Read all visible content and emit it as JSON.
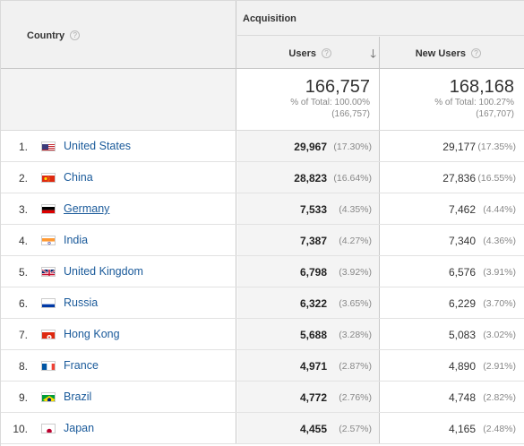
{
  "header": {
    "country": "Country",
    "acquisition": "Acquisition",
    "users": "Users",
    "new_users": "New Users",
    "help_glyph": "?",
    "sort_glyph": "🡓"
  },
  "totals": {
    "users": {
      "value": "166,757",
      "pct_line": "% of Total: 100.00%",
      "abs_line": "(166,757)"
    },
    "new_users": {
      "value": "168,168",
      "pct_line": "% of Total: 100.27%",
      "abs_line": "(167,707)"
    }
  },
  "rows": [
    {
      "rank": "1.",
      "country": "United States",
      "flag": "us",
      "users": "29,967",
      "users_pct": "(17.30%)",
      "new_users": "29,177",
      "new_users_pct": "(17.35%)"
    },
    {
      "rank": "2.",
      "country": "China",
      "flag": "cn",
      "users": "28,823",
      "users_pct": "(16.64%)",
      "new_users": "27,836",
      "new_users_pct": "(16.55%)"
    },
    {
      "rank": "3.",
      "country": "Germany",
      "flag": "de",
      "users": "7,533",
      "users_pct": "(4.35%)",
      "new_users": "7,462",
      "new_users_pct": "(4.44%)"
    },
    {
      "rank": "4.",
      "country": "India",
      "flag": "in",
      "users": "7,387",
      "users_pct": "(4.27%)",
      "new_users": "7,340",
      "new_users_pct": "(4.36%)"
    },
    {
      "rank": "5.",
      "country": "United Kingdom",
      "flag": "gb",
      "users": "6,798",
      "users_pct": "(3.92%)",
      "new_users": "6,576",
      "new_users_pct": "(3.91%)"
    },
    {
      "rank": "6.",
      "country": "Russia",
      "flag": "ru",
      "users": "6,322",
      "users_pct": "(3.65%)",
      "new_users": "6,229",
      "new_users_pct": "(3.70%)"
    },
    {
      "rank": "7.",
      "country": "Hong Kong",
      "flag": "hk",
      "users": "5,688",
      "users_pct": "(3.28%)",
      "new_users": "5,083",
      "new_users_pct": "(3.02%)"
    },
    {
      "rank": "8.",
      "country": "France",
      "flag": "fr",
      "users": "4,971",
      "users_pct": "(2.87%)",
      "new_users": "4,890",
      "new_users_pct": "(2.91%)"
    },
    {
      "rank": "9.",
      "country": "Brazil",
      "flag": "br",
      "users": "4,772",
      "users_pct": "(2.76%)",
      "new_users": "4,748",
      "new_users_pct": "(2.82%)"
    },
    {
      "rank": "10.",
      "country": "Japan",
      "flag": "jp",
      "users": "4,455",
      "users_pct": "(2.57%)",
      "new_users": "4,165",
      "new_users_pct": "(2.48%)"
    }
  ],
  "colors": {
    "link": "#1a5a9a",
    "header_bg": "#f1f1f1",
    "sorted_column_bg": "#f4f4f4"
  }
}
